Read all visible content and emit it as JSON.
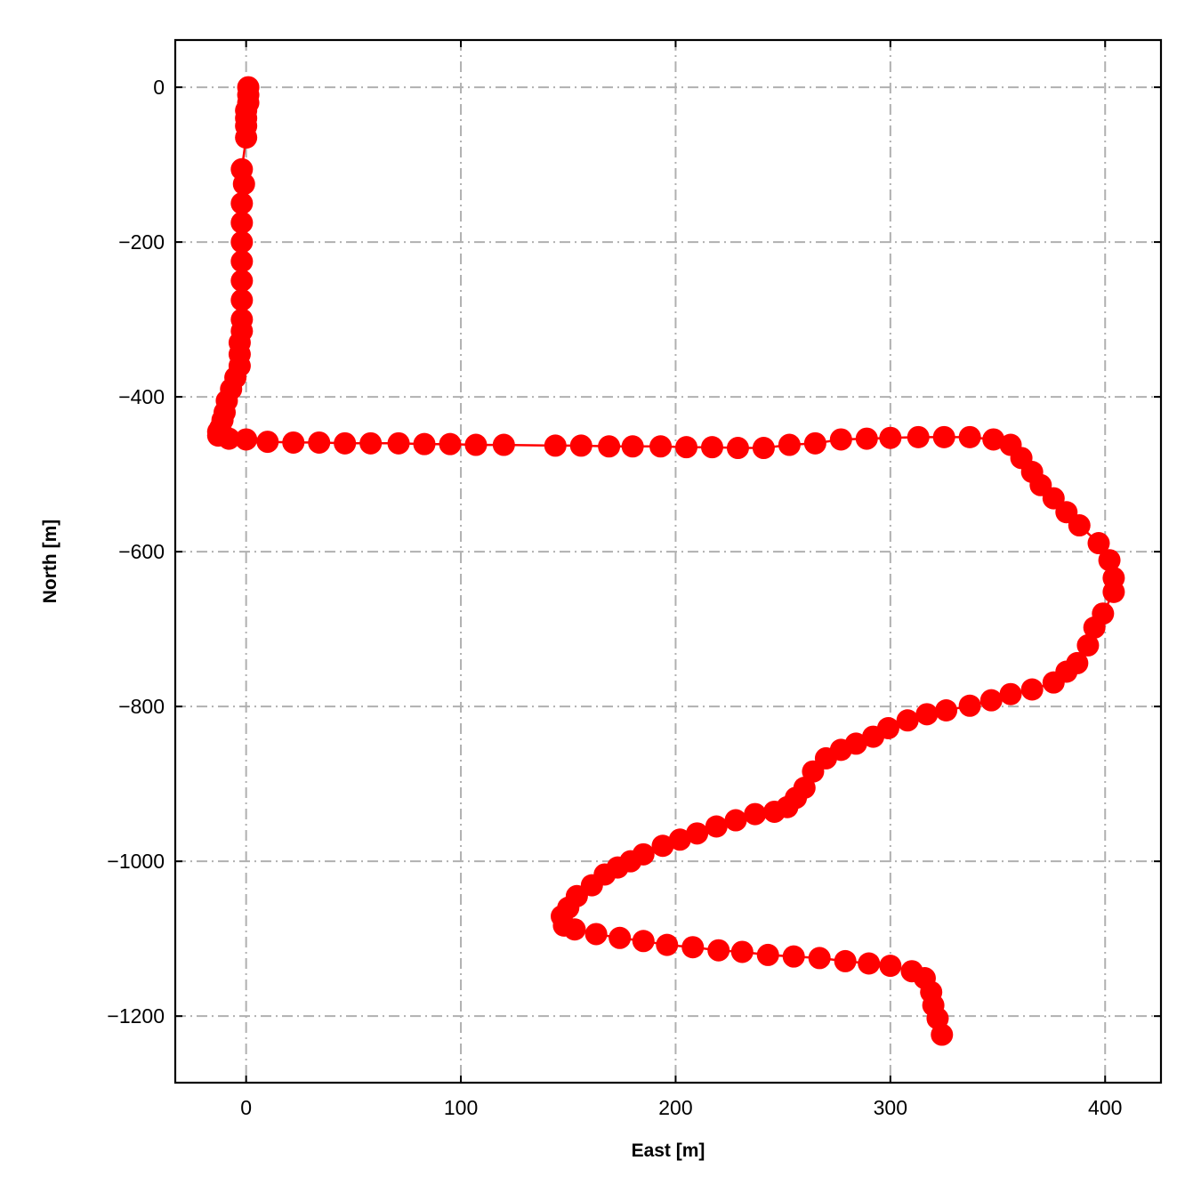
{
  "chart_data": {
    "type": "line",
    "xlabel": "East [m]",
    "ylabel": "North [m]",
    "xlim": [
      -33,
      426
    ],
    "ylim": [
      -1286,
      61
    ],
    "xticks": [
      0,
      100,
      200,
      300,
      400
    ],
    "yticks": [
      0,
      -200,
      -400,
      -600,
      -800,
      -1000,
      -1200
    ],
    "xtick_labels": [
      "0",
      "100",
      "200",
      "300",
      "400"
    ],
    "ytick_labels": [
      "0",
      "−200",
      "−400",
      "−600",
      "−800",
      "−1000",
      "−1200"
    ],
    "grid": true,
    "grid_style": "dashdot",
    "color": "#ff0000",
    "grid_color": "#b0b0b0",
    "marker": "circle",
    "series": [
      {
        "x": [
          1,
          1,
          1,
          0,
          0,
          0,
          0,
          -2,
          -1,
          -2,
          -2,
          -2,
          -2,
          -2,
          -2,
          -2,
          -2,
          -3,
          -3,
          -3,
          -5,
          -7,
          -9,
          -10,
          -11,
          -12,
          -13,
          -13,
          -8,
          0,
          10,
          22,
          34,
          46,
          58,
          71,
          83,
          95,
          107,
          120,
          144,
          156,
          169,
          180,
          193,
          205,
          217,
          229,
          241,
          253,
          265,
          277,
          289,
          300,
          313,
          325,
          337,
          348,
          356,
          361,
          366,
          370,
          376,
          382,
          388,
          397,
          402,
          404,
          404,
          399,
          395,
          392,
          387,
          382,
          376,
          366,
          356,
          347,
          337,
          326,
          317,
          308,
          299,
          292,
          284,
          277,
          270,
          264,
          260,
          256,
          252,
          246,
          237,
          228,
          219,
          210,
          202,
          194,
          185,
          179,
          173,
          167,
          161,
          154,
          150,
          147,
          148,
          153,
          163,
          174,
          185,
          196,
          208,
          220,
          231,
          243,
          255,
          267,
          279,
          290,
          300,
          310,
          316,
          319,
          320,
          322,
          324
        ],
        "y": [
          0,
          -10,
          -20,
          -30,
          -40,
          -50,
          -65,
          -106,
          -125,
          -150,
          -175,
          -200,
          -225,
          -250,
          -275,
          -300,
          -315,
          -330,
          -345,
          -360,
          -375,
          -390,
          -405,
          -420,
          -430,
          -440,
          -445,
          -450,
          -454,
          -455,
          -458,
          -459,
          -459,
          -460,
          -460,
          -460,
          -461,
          -461,
          -462,
          -462,
          -463,
          -463,
          -464,
          -464,
          -464,
          -465,
          -465,
          -466,
          -466,
          -462,
          -460,
          -455,
          -454,
          -453,
          -452,
          -452,
          -452,
          -455,
          -462,
          -479,
          -497,
          -514,
          -531,
          -549,
          -566,
          -589,
          -611,
          -634,
          -652,
          -680,
          -698,
          -721,
          -744,
          -755,
          -769,
          -778,
          -784,
          -792,
          -799,
          -805,
          -810,
          -818,
          -828,
          -839,
          -848,
          -856,
          -867,
          -884,
          -905,
          -918,
          -930,
          -936,
          -939,
          -947,
          -955,
          -964,
          -972,
          -980,
          -991,
          -1000,
          -1008,
          -1017,
          -1031,
          -1045,
          -1060,
          -1071,
          -1083,
          -1088,
          -1094,
          -1099,
          -1103,
          -1108,
          -1111,
          -1115,
          -1117,
          -1121,
          -1123,
          -1125,
          -1129,
          -1132,
          -1135,
          -1142,
          -1151,
          -1169,
          -1186,
          -1203,
          -1224
        ]
      }
    ]
  }
}
